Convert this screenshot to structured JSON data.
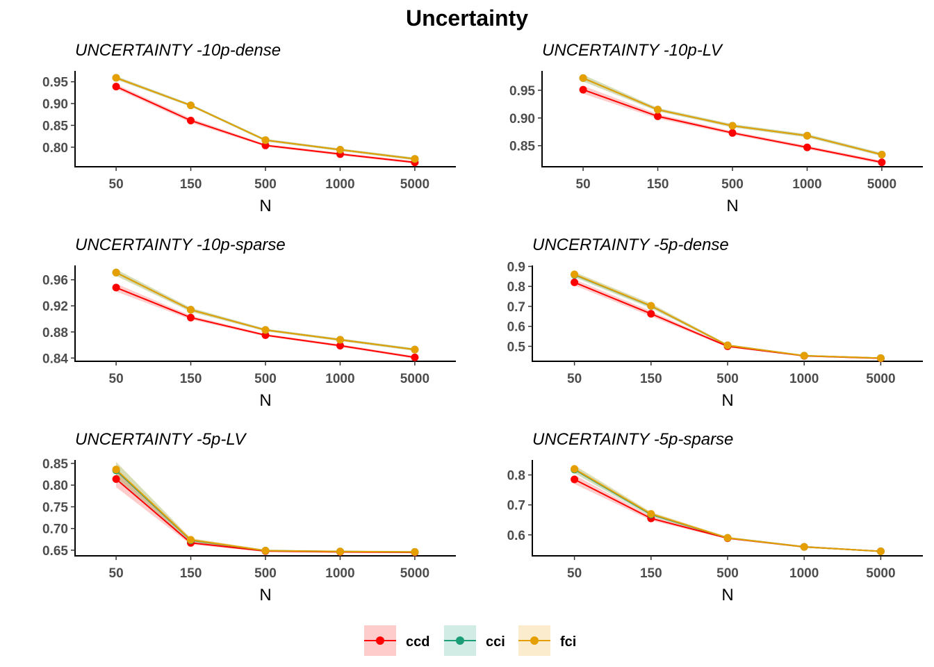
{
  "figure_title": "Uncertainty",
  "colors": {
    "ccd": "#ff0000",
    "cci": "#1b9e77",
    "fci": "#e69f00"
  },
  "legend": {
    "position": "bottom",
    "entries": [
      "ccd",
      "cci",
      "fci"
    ]
  },
  "chart_data": [
    {
      "type": "line",
      "title": "UNCERTAINTY -10p-dense",
      "xlabel": "N",
      "categories": [
        "50",
        "150",
        "500",
        "1000",
        "5000"
      ],
      "ylim": [
        0.755,
        0.975
      ],
      "yticks": [
        0.8,
        0.85,
        0.9,
        0.95
      ],
      "ytick_labels": [
        "0.80",
        "0.85",
        "0.90",
        "0.95"
      ],
      "series": [
        {
          "name": "ccd",
          "values": [
            0.939,
            0.861,
            0.804,
            0.784,
            0.765
          ],
          "lower": [
            0.934,
            0.856,
            0.801,
            0.781,
            0.762
          ],
          "upper": [
            0.944,
            0.866,
            0.807,
            0.787,
            0.768
          ]
        },
        {
          "name": "cci",
          "values": [
            0.959,
            0.896,
            0.816,
            0.794,
            0.773
          ],
          "lower": [
            0.955,
            0.893,
            0.813,
            0.791,
            0.77
          ],
          "upper": [
            0.963,
            0.899,
            0.819,
            0.797,
            0.776
          ]
        },
        {
          "name": "fci",
          "values": [
            0.959,
            0.896,
            0.816,
            0.794,
            0.773
          ],
          "lower": [
            0.955,
            0.893,
            0.813,
            0.791,
            0.77
          ],
          "upper": [
            0.963,
            0.899,
            0.819,
            0.797,
            0.776
          ]
        }
      ]
    },
    {
      "type": "line",
      "title": "UNCERTAINTY -10p-LV",
      "xlabel": "N",
      "categories": [
        "50",
        "150",
        "500",
        "1000",
        "5000"
      ],
      "ylim": [
        0.812,
        0.985
      ],
      "yticks": [
        0.85,
        0.9,
        0.95
      ],
      "ytick_labels": [
        "0.85",
        "0.90",
        "0.95"
      ],
      "series": [
        {
          "name": "ccd",
          "values": [
            0.951,
            0.903,
            0.873,
            0.847,
            0.82
          ],
          "lower": [
            0.944,
            0.899,
            0.87,
            0.844,
            0.817
          ],
          "upper": [
            0.958,
            0.907,
            0.876,
            0.85,
            0.823
          ]
        },
        {
          "name": "cci",
          "values": [
            0.972,
            0.915,
            0.886,
            0.868,
            0.834
          ],
          "lower": [
            0.966,
            0.912,
            0.883,
            0.865,
            0.831
          ],
          "upper": [
            0.978,
            0.918,
            0.889,
            0.871,
            0.837
          ]
        },
        {
          "name": "fci",
          "values": [
            0.972,
            0.915,
            0.886,
            0.868,
            0.834
          ],
          "lower": [
            0.966,
            0.912,
            0.883,
            0.865,
            0.831
          ],
          "upper": [
            0.978,
            0.918,
            0.889,
            0.871,
            0.837
          ]
        }
      ]
    },
    {
      "type": "line",
      "title": "UNCERTAINTY -10p-sparse",
      "xlabel": "N",
      "categories": [
        "50",
        "150",
        "500",
        "1000",
        "5000"
      ],
      "ylim": [
        0.835,
        0.982
      ],
      "yticks": [
        0.84,
        0.88,
        0.92,
        0.96
      ],
      "ytick_labels": [
        "0.84",
        "0.88",
        "0.92",
        "0.96"
      ],
      "series": [
        {
          "name": "ccd",
          "values": [
            0.948,
            0.902,
            0.875,
            0.859,
            0.841
          ],
          "lower": [
            0.942,
            0.899,
            0.873,
            0.857,
            0.839
          ],
          "upper": [
            0.954,
            0.905,
            0.877,
            0.861,
            0.843
          ]
        },
        {
          "name": "cci",
          "values": [
            0.971,
            0.914,
            0.883,
            0.868,
            0.853
          ],
          "lower": [
            0.966,
            0.911,
            0.881,
            0.866,
            0.851
          ],
          "upper": [
            0.976,
            0.917,
            0.885,
            0.87,
            0.855
          ]
        },
        {
          "name": "fci",
          "values": [
            0.971,
            0.914,
            0.883,
            0.868,
            0.853
          ],
          "lower": [
            0.966,
            0.911,
            0.881,
            0.866,
            0.851
          ],
          "upper": [
            0.976,
            0.917,
            0.885,
            0.87,
            0.855
          ]
        }
      ]
    },
    {
      "type": "line",
      "title": "UNCERTAINTY -5p-dense",
      "xlabel": "N",
      "categories": [
        "50",
        "150",
        "500",
        "1000",
        "5000"
      ],
      "ylim": [
        0.425,
        0.905
      ],
      "yticks": [
        0.5,
        0.6,
        0.7,
        0.8,
        0.9
      ],
      "ytick_labels": [
        "0.5",
        "0.6",
        "0.7",
        "0.8",
        "0.9"
      ],
      "series": [
        {
          "name": "ccd",
          "values": [
            0.82,
            0.663,
            0.5,
            0.452,
            0.44
          ],
          "lower": [
            0.805,
            0.65,
            0.495,
            0.449,
            0.437
          ],
          "upper": [
            0.835,
            0.676,
            0.505,
            0.455,
            0.443
          ]
        },
        {
          "name": "cci",
          "values": [
            0.858,
            0.702,
            0.505,
            0.453,
            0.441
          ],
          "lower": [
            0.845,
            0.69,
            0.5,
            0.45,
            0.438
          ],
          "upper": [
            0.871,
            0.714,
            0.51,
            0.456,
            0.444
          ]
        },
        {
          "name": "fci",
          "values": [
            0.86,
            0.703,
            0.505,
            0.453,
            0.441
          ],
          "lower": [
            0.847,
            0.691,
            0.5,
            0.45,
            0.438
          ],
          "upper": [
            0.873,
            0.715,
            0.51,
            0.456,
            0.444
          ]
        }
      ]
    },
    {
      "type": "line",
      "title": "UNCERTAINTY -5p-LV",
      "xlabel": "N",
      "categories": [
        "50",
        "150",
        "500",
        "1000",
        "5000"
      ],
      "ylim": [
        0.637,
        0.858
      ],
      "yticks": [
        0.65,
        0.7,
        0.75,
        0.8,
        0.85
      ],
      "ytick_labels": [
        "0.65",
        "0.70",
        "0.75",
        "0.80",
        "0.85"
      ],
      "series": [
        {
          "name": "ccd",
          "values": [
            0.814,
            0.667,
            0.648,
            0.646,
            0.645
          ],
          "lower": [
            0.795,
            0.663,
            0.646,
            0.644,
            0.643
          ],
          "upper": [
            0.833,
            0.671,
            0.65,
            0.648,
            0.647
          ]
        },
        {
          "name": "cci",
          "values": [
            0.834,
            0.673,
            0.649,
            0.647,
            0.646
          ],
          "lower": [
            0.815,
            0.669,
            0.647,
            0.645,
            0.644
          ],
          "upper": [
            0.853,
            0.677,
            0.651,
            0.649,
            0.648
          ]
        },
        {
          "name": "fci",
          "values": [
            0.836,
            0.674,
            0.649,
            0.647,
            0.646
          ],
          "lower": [
            0.818,
            0.67,
            0.647,
            0.645,
            0.644
          ],
          "upper": [
            0.854,
            0.678,
            0.651,
            0.649,
            0.648
          ]
        }
      ]
    },
    {
      "type": "line",
      "title": "UNCERTAINTY -5p-sparse",
      "xlabel": "N",
      "categories": [
        "50",
        "150",
        "500",
        "1000",
        "5000"
      ],
      "ylim": [
        0.53,
        0.85
      ],
      "yticks": [
        0.6,
        0.7,
        0.8
      ],
      "ytick_labels": [
        "0.6",
        "0.7",
        "0.8"
      ],
      "series": [
        {
          "name": "ccd",
          "values": [
            0.785,
            0.655,
            0.589,
            0.56,
            0.545
          ],
          "lower": [
            0.77,
            0.648,
            0.586,
            0.557,
            0.543
          ],
          "upper": [
            0.8,
            0.662,
            0.592,
            0.563,
            0.547
          ]
        },
        {
          "name": "cci",
          "values": [
            0.818,
            0.668,
            0.59,
            0.56,
            0.545
          ],
          "lower": [
            0.805,
            0.661,
            0.587,
            0.557,
            0.543
          ],
          "upper": [
            0.831,
            0.675,
            0.593,
            0.563,
            0.547
          ]
        },
        {
          "name": "fci",
          "values": [
            0.82,
            0.67,
            0.59,
            0.56,
            0.545
          ],
          "lower": [
            0.807,
            0.663,
            0.587,
            0.557,
            0.543
          ],
          "upper": [
            0.833,
            0.677,
            0.593,
            0.563,
            0.547
          ]
        }
      ]
    }
  ]
}
